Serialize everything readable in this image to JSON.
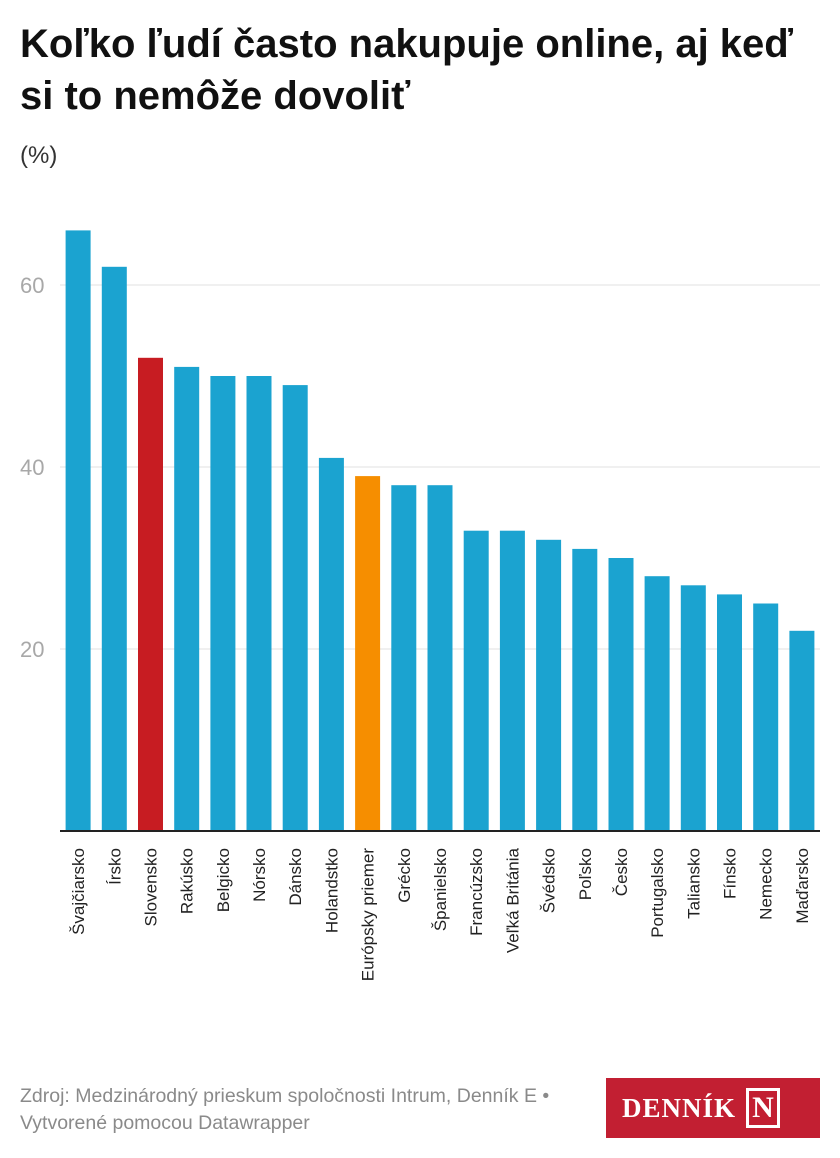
{
  "header": {
    "title": "Koľko ľudí často nakupuje online, aj keď si to nemôže dovoliť",
    "unit": "(%)"
  },
  "footer": {
    "source": "Zdroj: Medzinárodný prieskum spoločnosti Intrum, Denník E • Vytvorené pomocou Datawrapper",
    "logo_text": "DENNÍK",
    "logo_letter": "N"
  },
  "colors": {
    "default_bar": "#1ba3d0",
    "highlight_slovakia": "#c71c22",
    "highlight_average": "#f68e00",
    "gridline": "#e0e0e0",
    "tick_label": "#a8a8a8",
    "axis": "#222222",
    "brand": "#c21f32"
  },
  "chart_data": {
    "type": "bar",
    "title": "Koľko ľudí často nakupuje online, aj keď si to nemôže dovoliť",
    "ylabel": "(%)",
    "xlabel": "",
    "ylim": [
      0,
      66
    ],
    "yticks": [
      20,
      40,
      60
    ],
    "grid": true,
    "categories": [
      "Švajčiarsko",
      "Írsko",
      "Slovensko",
      "Rakúsko",
      "Belgicko",
      "Nórsko",
      "Dánsko",
      "Holandstko",
      "Európsky priemer",
      "Grécko",
      "Španielsko",
      "Francúzsko",
      "Veľká Británia",
      "Švédsko",
      "Poľsko",
      "Česko",
      "Portugalsko",
      "Taliansko",
      "Fínsko",
      "Nemecko",
      "Maďarsko"
    ],
    "values": [
      66,
      62,
      52,
      51,
      50,
      50,
      49,
      41,
      39,
      38,
      38,
      33,
      33,
      32,
      31,
      30,
      28,
      27,
      26,
      25,
      22
    ],
    "highlights": {
      "Slovensko": "highlight_slovakia",
      "Európsky priemer": "highlight_average"
    }
  }
}
